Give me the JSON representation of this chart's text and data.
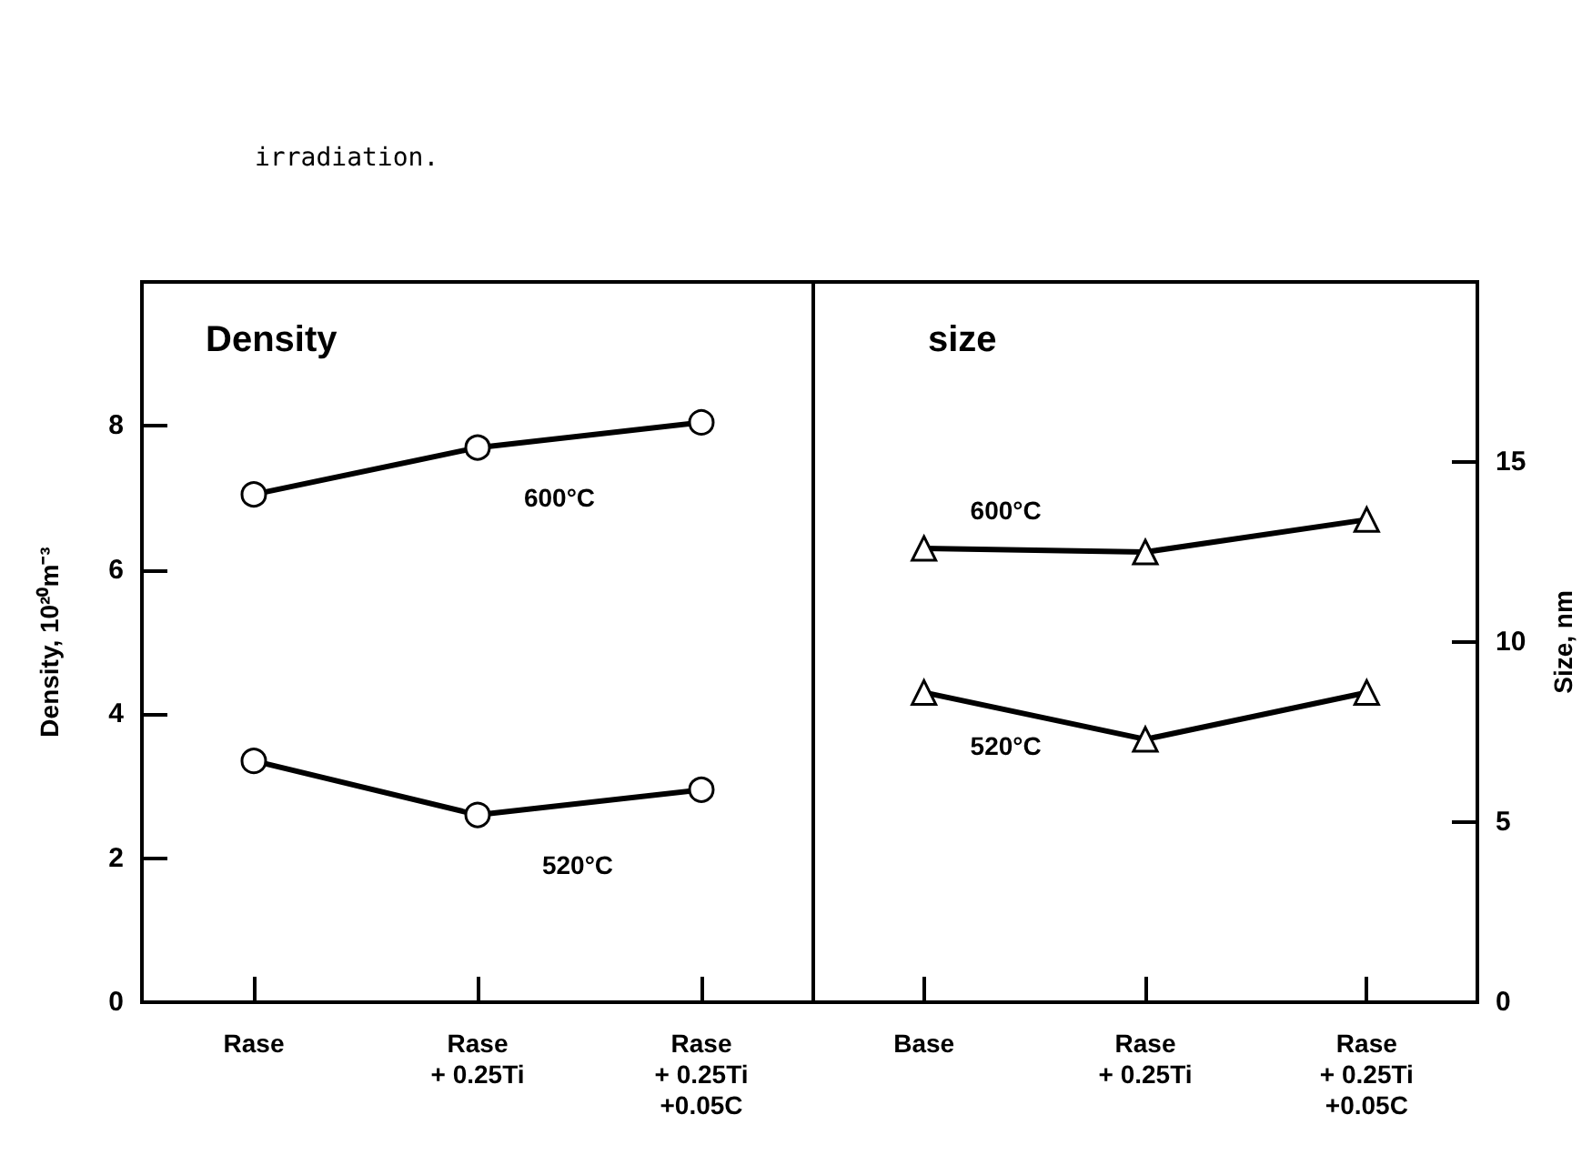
{
  "chart_data": [
    {
      "type": "line",
      "title": "Density",
      "ylabel": "Density, 10²⁰m⁻³",
      "annotations": [
        "irradiation."
      ],
      "categories": [
        "Rase",
        "Rase\n+ 0.25Ti",
        "Rase\n+ 0.25Ti\n+0.05C"
      ],
      "series": [
        {
          "name": "600°C",
          "color": "#000000",
          "values": [
            7.05,
            7.7,
            8.05
          ]
        },
        {
          "name": "520°C",
          "color": "#000000",
          "values": [
            3.35,
            2.6,
            2.95
          ]
        }
      ],
      "ylim": [
        0,
        10
      ],
      "yticks": [
        0,
        2,
        4,
        6,
        8
      ],
      "marker": "circle",
      "line_style": "solid",
      "grid": false,
      "legend": false
    },
    {
      "type": "line",
      "title": "size",
      "ylabel": "Size, nm",
      "categories": [
        "Base",
        "Rase\n+ 0.25Ti",
        "Rase\n+ 0.25Ti\n+0.05C"
      ],
      "series": [
        {
          "name": "600°C",
          "color": "#000000",
          "values": [
            12.6,
            12.5,
            13.4
          ]
        },
        {
          "name": "520°C",
          "color": "#000000",
          "values": [
            8.6,
            7.3,
            8.6
          ]
        }
      ],
      "ylim": [
        0,
        20
      ],
      "yticks": [
        0,
        5,
        10,
        15
      ],
      "marker": "triangle",
      "line_style": "solid",
      "grid": false,
      "legend": false
    }
  ]
}
